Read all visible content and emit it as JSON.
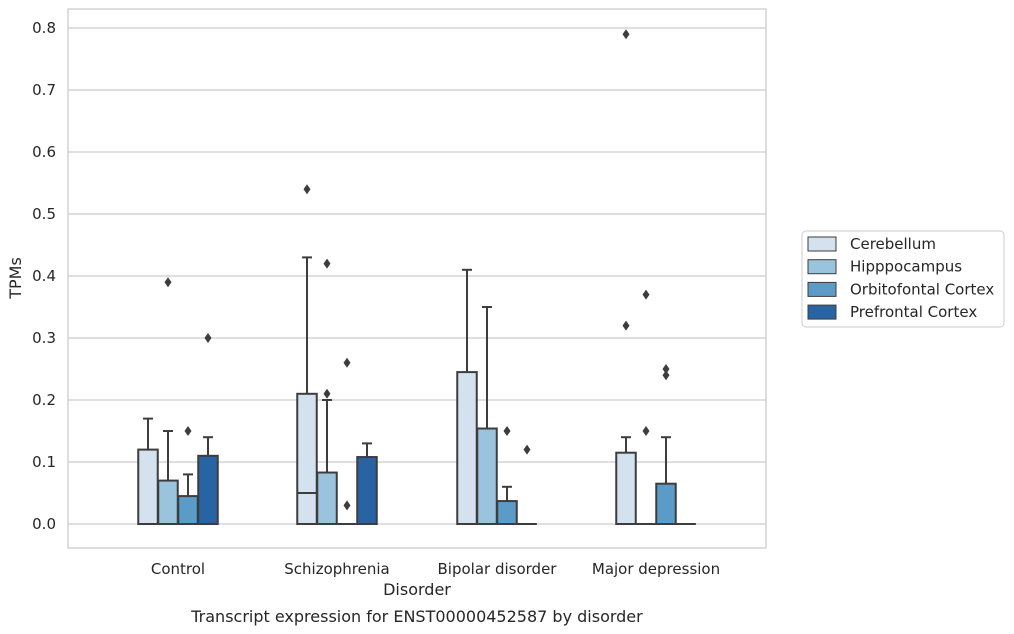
{
  "chart_data": {
    "type": "box",
    "caption": "Transcript expression for ENST00000452587 by disorder",
    "xlabel": "Disorder",
    "ylabel": "TPMs",
    "ylim": [
      -0.04,
      0.83
    ],
    "yticks": [
      0.0,
      0.1,
      0.2,
      0.3,
      0.4,
      0.5,
      0.6,
      0.7,
      0.8
    ],
    "ytick_labels": [
      "0.0",
      "0.1",
      "0.2",
      "0.3",
      "0.4",
      "0.5",
      "0.6",
      "0.7",
      "0.8"
    ],
    "grid": true,
    "legend_position": "right",
    "categories": [
      "Control",
      "Schizophrenia",
      "Bipolar disorder",
      "Major depression"
    ],
    "series": [
      {
        "name": "Cerebellum",
        "color": "#d4e2f0",
        "boxes": [
          {
            "q1": 0.0,
            "median": 0.0,
            "q3": 0.12,
            "whisker_low": 0.0,
            "whisker_high": 0.17,
            "outliers": []
          },
          {
            "q1": 0.0,
            "median": 0.05,
            "q3": 0.21,
            "whisker_low": 0.0,
            "whisker_high": 0.43,
            "outliers": [
              0.54
            ]
          },
          {
            "q1": 0.0,
            "median": 0.0,
            "q3": 0.245,
            "whisker_low": 0.0,
            "whisker_high": 0.41,
            "outliers": []
          },
          {
            "q1": 0.0,
            "median": 0.0,
            "q3": 0.115,
            "whisker_low": 0.0,
            "whisker_high": 0.14,
            "outliers": [
              0.79,
              0.32
            ]
          }
        ]
      },
      {
        "name": "Hipppocampus",
        "color": "#9ac4dd",
        "boxes": [
          {
            "q1": 0.0,
            "median": 0.0,
            "q3": 0.07,
            "whisker_low": 0.0,
            "whisker_high": 0.15,
            "outliers": [
              0.39
            ]
          },
          {
            "q1": 0.0,
            "median": 0.0,
            "q3": 0.083,
            "whisker_low": 0.0,
            "whisker_high": 0.2,
            "outliers": [
              0.42,
              0.21
            ]
          },
          {
            "q1": 0.0,
            "median": 0.0,
            "q3": 0.154,
            "whisker_low": 0.0,
            "whisker_high": 0.35,
            "outliers": []
          },
          {
            "q1": 0.0,
            "median": 0.0,
            "q3": 0.0,
            "whisker_low": 0.0,
            "whisker_high": 0.0,
            "outliers": [
              0.37,
              0.15
            ]
          }
        ]
      },
      {
        "name": "Orbitofontal Cortex",
        "color": "#5b9bc8",
        "boxes": [
          {
            "q1": 0.0,
            "median": 0.0,
            "q3": 0.045,
            "whisker_low": 0.0,
            "whisker_high": 0.08,
            "outliers": [
              0.15
            ]
          },
          {
            "q1": 0.0,
            "median": 0.0,
            "q3": 0.0,
            "whisker_low": 0.0,
            "whisker_high": 0.0,
            "outliers": [
              0.26,
              0.03
            ]
          },
          {
            "q1": 0.0,
            "median": 0.0,
            "q3": 0.037,
            "whisker_low": 0.0,
            "whisker_high": 0.06,
            "outliers": [
              0.15
            ]
          },
          {
            "q1": 0.0,
            "median": 0.0,
            "q3": 0.065,
            "whisker_low": 0.0,
            "whisker_high": 0.14,
            "outliers": [
              0.25,
              0.24
            ]
          }
        ]
      },
      {
        "name": "Prefrontal Cortex",
        "color": "#2864a4",
        "boxes": [
          {
            "q1": 0.0,
            "median": 0.0,
            "q3": 0.11,
            "whisker_low": 0.0,
            "whisker_high": 0.14,
            "outliers": [
              0.3
            ]
          },
          {
            "q1": 0.0,
            "median": 0.0,
            "q3": 0.108,
            "whisker_low": 0.0,
            "whisker_high": 0.13,
            "outliers": []
          },
          {
            "q1": 0.0,
            "median": 0.0,
            "q3": 0.0,
            "whisker_low": 0.0,
            "whisker_high": 0.0,
            "outliers": [
              0.12
            ]
          },
          {
            "q1": 0.0,
            "median": 0.0,
            "q3": 0.0,
            "whisker_low": 0.0,
            "whisker_high": 0.0,
            "outliers": []
          }
        ]
      }
    ]
  }
}
